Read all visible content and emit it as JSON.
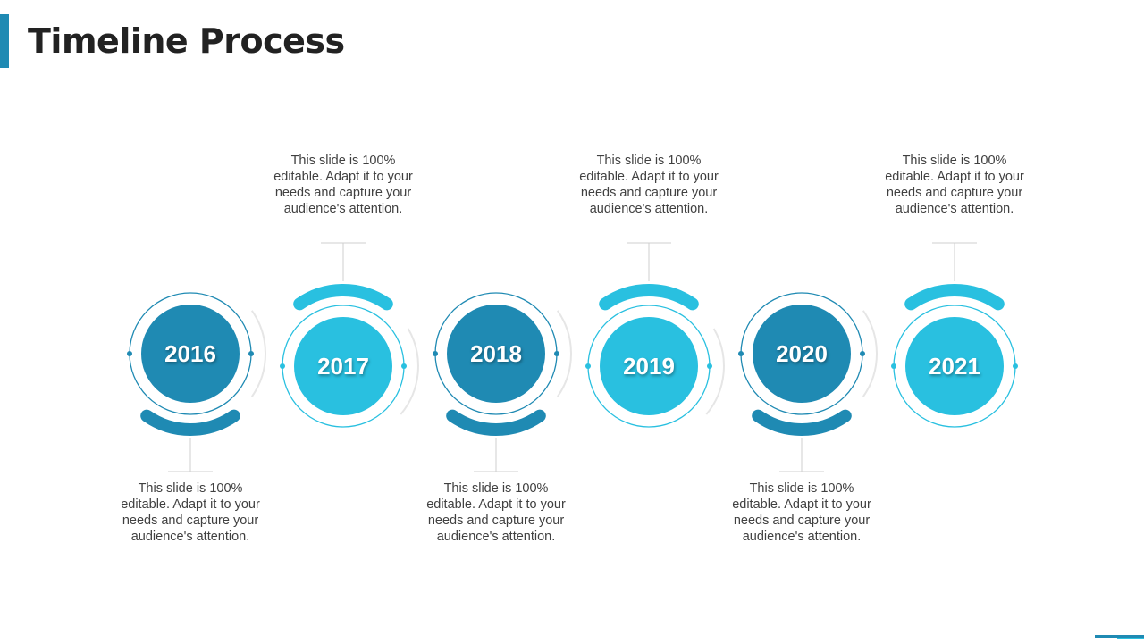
{
  "title": "Timeline Process",
  "colors": {
    "dark": "#1f8ab3",
    "light": "#29c0e0",
    "connector": "#e6e6e6",
    "stem": "#cfcfcf"
  },
  "milestones": [
    {
      "year": "2016",
      "text": "This slide is 100% editable. Adapt it to your needs and capture your audience's attention.",
      "placement": "bottom",
      "tone": "dark"
    },
    {
      "year": "2017",
      "text": "This slide is 100% editable. Adapt it to your needs and capture your audience's attention.",
      "placement": "top",
      "tone": "light"
    },
    {
      "year": "2018",
      "text": "This slide is 100% editable. Adapt it to your needs and capture your audience's attention.",
      "placement": "bottom",
      "tone": "dark"
    },
    {
      "year": "2019",
      "text": "This slide is 100% editable. Adapt it to your needs and capture your audience's attention.",
      "placement": "top",
      "tone": "light"
    },
    {
      "year": "2020",
      "text": "This slide is 100% editable. Adapt it to your needs and capture your audience's attention.",
      "placement": "bottom",
      "tone": "dark"
    },
    {
      "year": "2021",
      "text": "This slide is 100% editable. Adapt it to your needs and capture your audience's attention.",
      "placement": "top",
      "tone": "light"
    }
  ]
}
